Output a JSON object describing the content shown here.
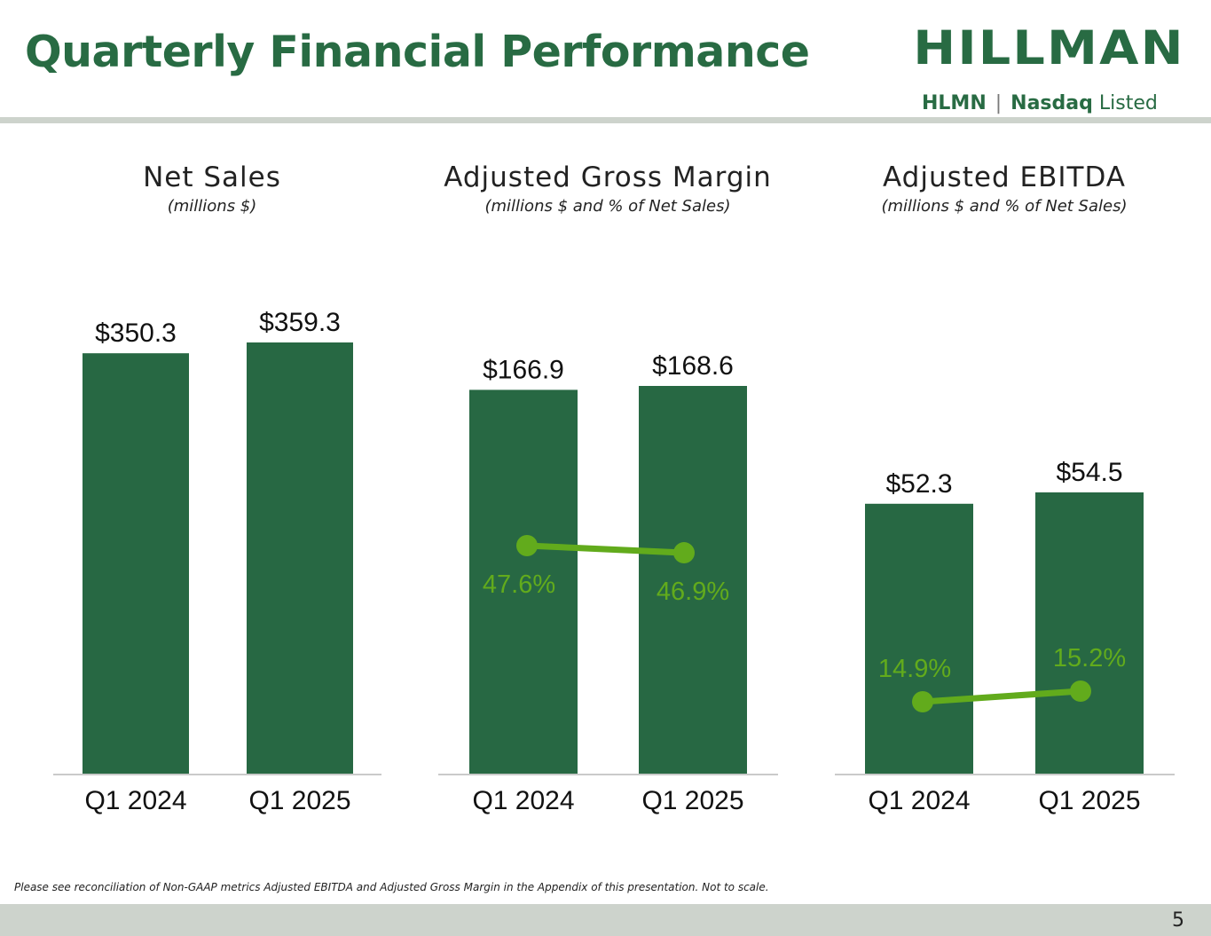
{
  "page": {
    "title": "Quarterly Financial Performance",
    "page_number": "5",
    "footnote": "Please see reconciliation of Non-GAAP metrics Adjusted EBITDA and Adjusted Gross Margin in the Appendix of this presentation. Not to scale."
  },
  "logo": {
    "wordmark": "HILLMAN",
    "ticker": "HLMN",
    "separator": "|",
    "exchange": "Nasdaq",
    "listed": "Listed"
  },
  "colors": {
    "brand_green": "#286b43",
    "bar_green": "#276843",
    "line_green": "#62ab1c",
    "rule_gray": "#cdd3cc"
  },
  "charts": [
    {
      "heading": "Net Sales",
      "subheading": "(millions $)"
    },
    {
      "heading": "Adjusted Gross Margin",
      "subheading": "(millions $ and % of Net Sales)"
    },
    {
      "heading": "Adjusted EBITDA",
      "subheading": "(millions $ and % of Net Sales)"
    }
  ],
  "chart_data": [
    {
      "type": "bar",
      "title": "Net Sales",
      "categories": [
        "Q1 2024",
        "Q1 2025"
      ],
      "values": [
        350.3,
        359.3
      ],
      "value_labels": [
        "$350.3",
        "$359.3"
      ]
    },
    {
      "type": "bar",
      "title": "Adjusted Gross Margin",
      "categories": [
        "Q1 2024",
        "Q1 2025"
      ],
      "values": [
        166.9,
        168.6
      ],
      "value_labels": [
        "$166.9",
        "$168.6"
      ],
      "line_series": {
        "name": "% of Net Sales",
        "values": [
          47.6,
          46.9
        ],
        "labels": [
          "47.6%",
          "46.9%"
        ]
      }
    },
    {
      "type": "bar",
      "title": "Adjusted EBITDA",
      "categories": [
        "Q1 2024",
        "Q1 2025"
      ],
      "values": [
        52.3,
        54.5
      ],
      "value_labels": [
        "$52.3",
        "$54.5"
      ],
      "line_series": {
        "name": "% of Net Sales",
        "values": [
          14.9,
          15.2
        ],
        "labels": [
          "14.9%",
          "15.2%"
        ]
      }
    }
  ]
}
